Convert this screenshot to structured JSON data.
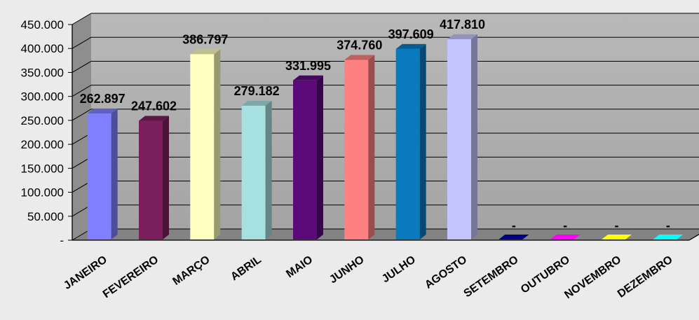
{
  "chart_data": {
    "type": "bar",
    "style": "3d-column",
    "categories": [
      "JANEIRO",
      "FEVEREIRO",
      "MARÇO",
      "ABRIL",
      "MAIO",
      "JUNHO",
      "JULHO",
      "AGOSTO",
      "SETEMBRO",
      "OUTUBRO",
      "NOVEMBRO",
      "DEZEMBRO"
    ],
    "values": [
      262897,
      247602,
      386797,
      279182,
      331995,
      374760,
      397609,
      417810,
      0,
      0,
      0,
      0
    ],
    "data_labels": [
      "262.897",
      "247.602",
      "386.797",
      "279.182",
      "331.995",
      "374.760",
      "397.609",
      "417.810",
      "-",
      "-",
      "-",
      "-"
    ],
    "colors": [
      "#8080ff",
      "#7b1f5c",
      "#ffffc0",
      "#a6e0e0",
      "#5c0a7a",
      "#ff8080",
      "#0a7abf",
      "#c4c4ff",
      "#000080",
      "#ff00ff",
      "#ffff00",
      "#00ffff"
    ],
    "yticks": [
      "-",
      "50.000",
      "100.000",
      "150.000",
      "200.000",
      "250.000",
      "300.000",
      "350.000",
      "400.000",
      "450.000"
    ],
    "ylim": [
      0,
      450000
    ],
    "grid": true,
    "legend": "none",
    "title": "",
    "xlabel": "",
    "ylabel": ""
  }
}
